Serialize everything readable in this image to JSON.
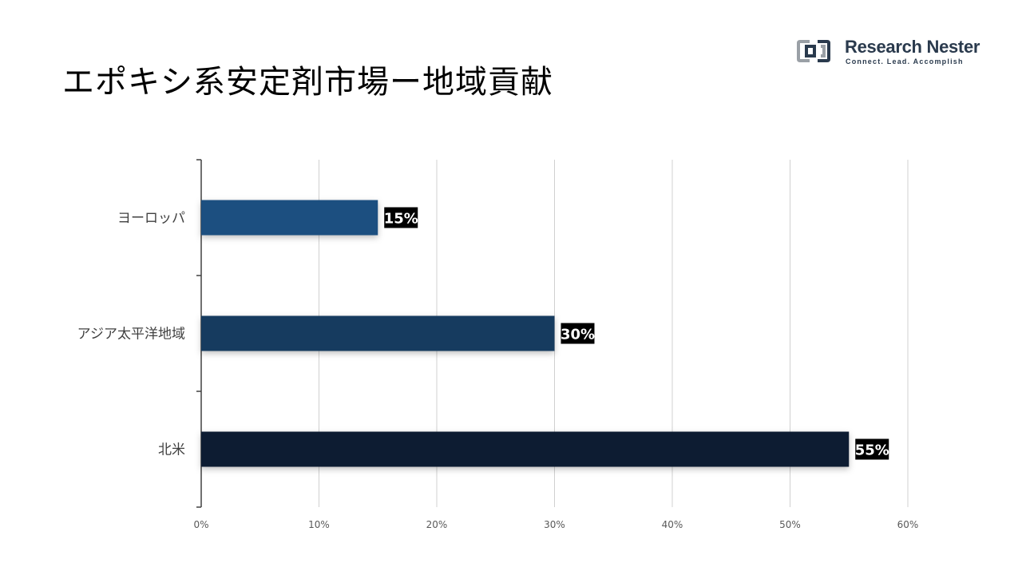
{
  "title": "エポキシ系安定剤市場ー地域貢献",
  "logo": {
    "name": "Research Nester",
    "tagline": "Connect. Lead. Accomplish"
  },
  "chart_data": {
    "type": "bar",
    "orientation": "horizontal",
    "categories": [
      "ヨーロッパ",
      "アジア太平洋地域",
      "北米"
    ],
    "values": [
      15,
      30,
      55
    ],
    "data_labels": [
      "15%",
      "30%",
      "55%"
    ],
    "xlim": [
      0,
      60
    ],
    "x_ticks": [
      "0%",
      "10%",
      "20%",
      "30%",
      "40%",
      "50%",
      "60%"
    ],
    "grid": "vertical",
    "colors": [
      "#1f5080",
      "#173a5e",
      "#0e1e30"
    ],
    "label_bg": "#000000",
    "label_color": "#ffffff"
  }
}
